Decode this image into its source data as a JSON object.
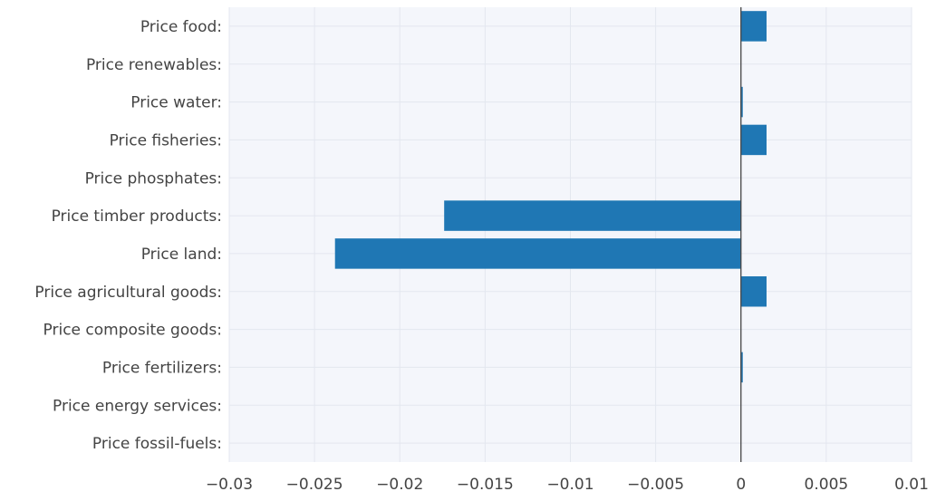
{
  "chart_data": {
    "type": "bar",
    "orientation": "horizontal",
    "categories": [
      "Price food:",
      "Price renewables:",
      "Price water:",
      "Price fisheries:",
      "Price phosphates:",
      "Price timber products:",
      "Price land:",
      "Price agricultural goods:",
      "Price composite goods:",
      "Price fertilizers:",
      "Price energy services:",
      "Price fossil-fuels:"
    ],
    "values": [
      0.0015,
      0,
      0.0001,
      0.0015,
      0,
      -0.0174,
      -0.0238,
      0.0015,
      0,
      0.0001,
      0,
      0
    ],
    "xlim": [
      -0.03,
      0.01
    ],
    "xticks": [
      -0.03,
      -0.025,
      -0.02,
      -0.015,
      -0.01,
      -0.005,
      0,
      0.005,
      0.01
    ],
    "xtick_labels": [
      "−0.03",
      "−0.025",
      "−0.02",
      "−0.015",
      "−0.01",
      "−0.005",
      "0",
      "0.005",
      "0.01"
    ],
    "grid": true,
    "title": "",
    "xlabel": "",
    "ylabel": "",
    "colors": {
      "bar": "#1f77b4",
      "plot_background": "#f4f6fb",
      "grid": "#e3e7ef",
      "zero_line": "#444444",
      "text": "#444444"
    }
  }
}
